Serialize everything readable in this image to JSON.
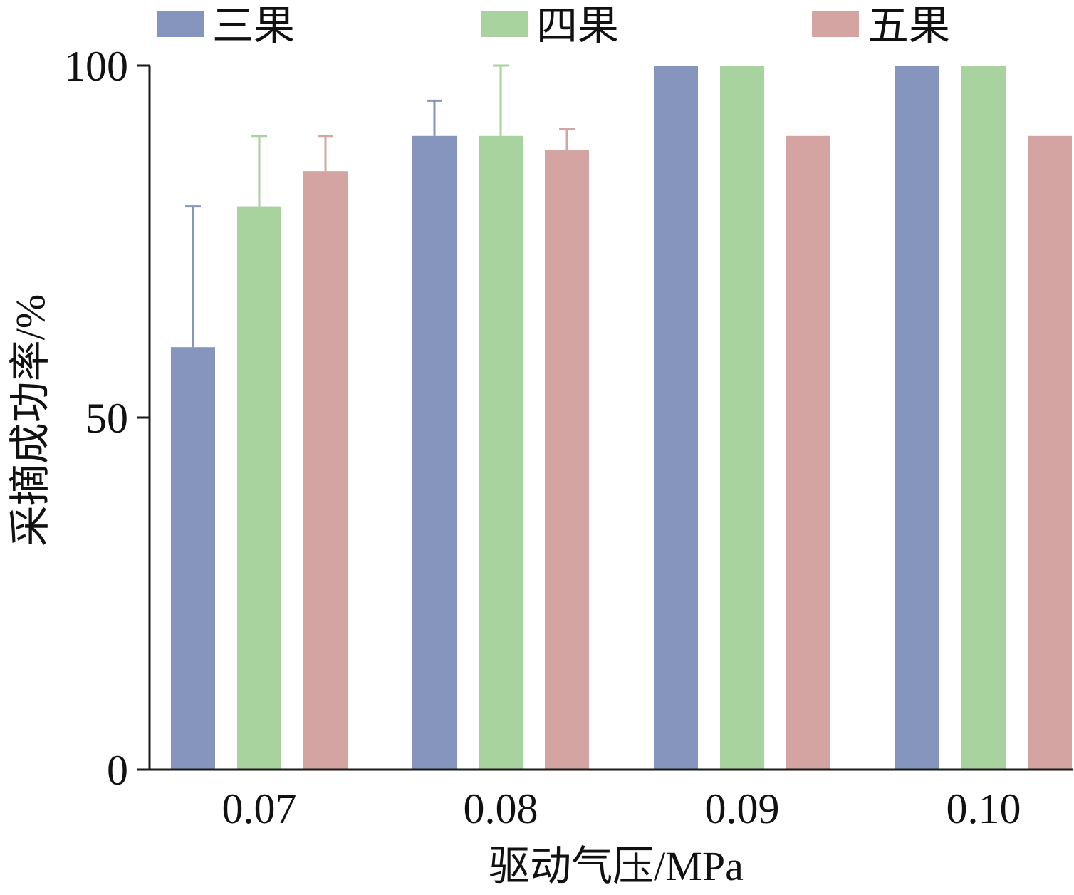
{
  "chart_data": {
    "type": "bar",
    "xlabel": "驱动气压/MPa",
    "ylabel": "采摘成功率/%",
    "categories": [
      "0.07",
      "0.08",
      "0.09",
      "0.10"
    ],
    "ylim": [
      0,
      100
    ],
    "yticks": [
      "0",
      "50",
      "100"
    ],
    "legend_position": "top",
    "series": [
      {
        "name": "三果",
        "color": "#8595bd",
        "values": [
          60,
          90,
          100,
          100
        ],
        "error": [
          20,
          5,
          0,
          0
        ]
      },
      {
        "name": "四果",
        "color": "#a8d29e",
        "values": [
          80,
          90,
          100,
          100
        ],
        "error": [
          10,
          10,
          0,
          0
        ]
      },
      {
        "name": "五果",
        "color": "#d3a4a1",
        "values": [
          85,
          88,
          90,
          90
        ],
        "error": [
          5,
          3,
          0,
          0
        ]
      }
    ]
  }
}
